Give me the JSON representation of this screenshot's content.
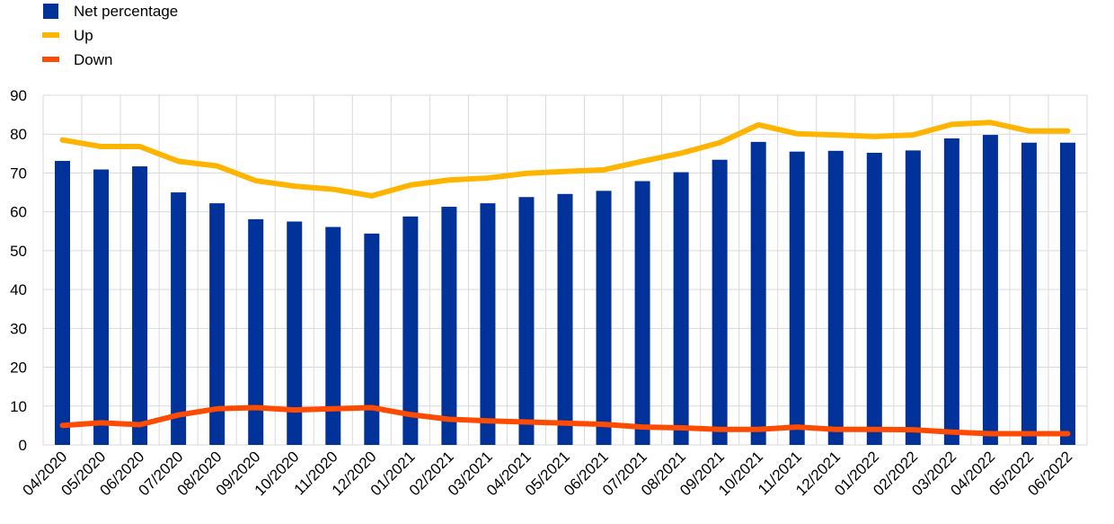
{
  "chart_data": {
    "type": "bar",
    "title": "",
    "xlabel": "",
    "ylabel": "",
    "ylim": [
      0,
      90
    ],
    "yticks": [
      0,
      10,
      20,
      30,
      40,
      50,
      60,
      70,
      80,
      90
    ],
    "grid": true,
    "legend_position": "top-left",
    "categories": [
      "04/2020",
      "05/2020",
      "06/2020",
      "07/2020",
      "08/2020",
      "09/2020",
      "10/2020",
      "11/2020",
      "12/2020",
      "01/2021",
      "02/2021",
      "03/2021",
      "04/2021",
      "05/2021",
      "06/2021",
      "07/2021",
      "08/2021",
      "09/2021",
      "10/2021",
      "11/2021",
      "12/2021",
      "01/2022",
      "02/2022",
      "03/2022",
      "04/2022",
      "05/2022",
      "06/2022"
    ],
    "series": [
      {
        "name": "Net percentage",
        "kind": "bar",
        "color": "#003299",
        "values": [
          73.1,
          70.9,
          71.7,
          65.0,
          62.2,
          58.1,
          57.5,
          56.1,
          54.4,
          58.8,
          61.3,
          62.2,
          63.8,
          64.6,
          65.4,
          67.9,
          70.2,
          73.4,
          78.0,
          75.5,
          75.7,
          75.2,
          75.8,
          78.9,
          79.8,
          77.8,
          77.8
        ]
      },
      {
        "name": "Up",
        "kind": "line",
        "color": "#FFB400",
        "values": [
          78.5,
          76.8,
          76.8,
          73.0,
          71.8,
          68.0,
          66.6,
          65.8,
          64.1,
          66.9,
          68.2,
          68.7,
          69.9,
          70.4,
          70.8,
          73.0,
          75.1,
          77.8,
          82.4,
          80.1,
          79.8,
          79.4,
          79.8,
          82.5,
          83.0,
          80.8,
          80.8
        ]
      },
      {
        "name": "Down",
        "kind": "line",
        "color": "#FF4B00",
        "values": [
          5.0,
          5.7,
          5.2,
          7.7,
          9.3,
          9.6,
          9.0,
          9.3,
          9.6,
          7.8,
          6.6,
          6.2,
          5.9,
          5.6,
          5.3,
          4.6,
          4.4,
          4.0,
          4.0,
          4.6,
          4.0,
          4.0,
          3.9,
          3.3,
          2.9,
          2.9,
          2.9
        ]
      }
    ]
  }
}
